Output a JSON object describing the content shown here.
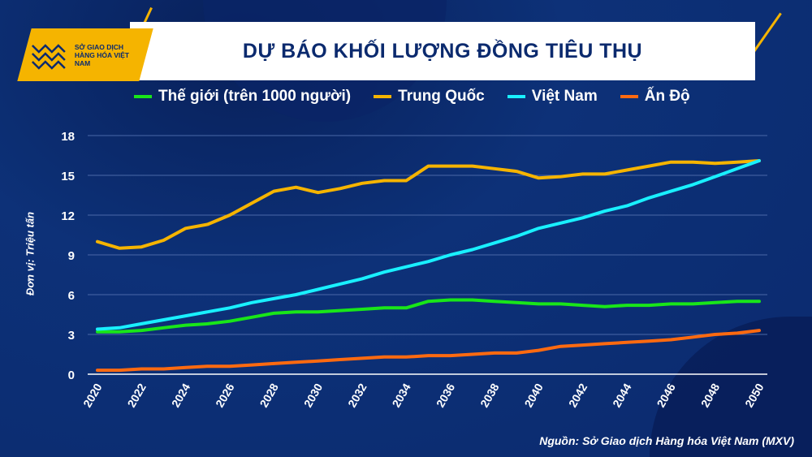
{
  "title": "DỰ BÁO KHỐI LƯỢNG ĐỒNG TIÊU THỤ",
  "logo_text": "SỞ GIAO DỊCH HÀNG HÓA VIỆT NAM",
  "source": "Nguồn: Sở Giao dịch Hàng hóa Việt Nam (MXV)",
  "colors": {
    "background": "#0b2a6e",
    "accent": "#f5b400"
  },
  "chart_data": {
    "type": "line",
    "title": "DỰ BÁO KHỐI LƯỢNG ĐỒNG TIÊU THỤ",
    "ylabel": "Đơn vị: Triệu tấn",
    "xlabel": "",
    "ylim": [
      0,
      18
    ],
    "yticks": [
      0,
      3,
      6,
      9,
      12,
      15,
      18
    ],
    "xticks": [
      2020,
      2022,
      2024,
      2026,
      2028,
      2030,
      2032,
      2034,
      2036,
      2038,
      2040,
      2042,
      2044,
      2046,
      2048,
      2050
    ],
    "grid": true,
    "legend": "top",
    "x": [
      2020,
      2021,
      2022,
      2023,
      2024,
      2025,
      2026,
      2027,
      2028,
      2029,
      2030,
      2031,
      2032,
      2033,
      2034,
      2035,
      2036,
      2037,
      2038,
      2039,
      2040,
      2041,
      2042,
      2043,
      2044,
      2045,
      2046,
      2047,
      2048,
      2049,
      2050
    ],
    "series": [
      {
        "name": "Thế giới (trên 1000 người)",
        "color": "#19e619",
        "values": [
          3.2,
          3.2,
          3.3,
          3.5,
          3.7,
          3.8,
          4.0,
          4.3,
          4.6,
          4.7,
          4.7,
          4.8,
          4.9,
          5.0,
          5.0,
          5.5,
          5.6,
          5.6,
          5.5,
          5.4,
          5.3,
          5.3,
          5.2,
          5.1,
          5.2,
          5.2,
          5.3,
          5.3,
          5.4,
          5.5,
          5.5
        ]
      },
      {
        "name": "Trung Quốc",
        "color": "#f5b400",
        "values": [
          10.0,
          9.5,
          9.6,
          10.1,
          11.0,
          11.3,
          12.0,
          12.9,
          13.8,
          14.1,
          13.7,
          14.0,
          14.4,
          14.6,
          14.6,
          15.7,
          15.7,
          15.7,
          15.5,
          15.3,
          14.8,
          14.9,
          15.1,
          15.1,
          15.4,
          15.7,
          16.0,
          16.0,
          15.9,
          16.0,
          16.1
        ]
      },
      {
        "name": "Việt Nam",
        "color": "#19f0ff",
        "values": [
          3.4,
          3.5,
          3.8,
          4.1,
          4.4,
          4.7,
          5.0,
          5.4,
          5.7,
          6.0,
          6.4,
          6.8,
          7.2,
          7.7,
          8.1,
          8.5,
          9.0,
          9.4,
          9.9,
          10.4,
          11.0,
          11.4,
          11.8,
          12.3,
          12.7,
          13.3,
          13.8,
          14.3,
          14.9,
          15.5,
          16.1
        ]
      },
      {
        "name": "Ấn Độ",
        "color": "#ff6a10",
        "values": [
          0.3,
          0.3,
          0.4,
          0.4,
          0.5,
          0.6,
          0.6,
          0.7,
          0.8,
          0.9,
          1.0,
          1.1,
          1.2,
          1.3,
          1.3,
          1.4,
          1.4,
          1.5,
          1.6,
          1.6,
          1.8,
          2.1,
          2.2,
          2.3,
          2.4,
          2.5,
          2.6,
          2.8,
          3.0,
          3.1,
          3.3
        ]
      }
    ]
  }
}
